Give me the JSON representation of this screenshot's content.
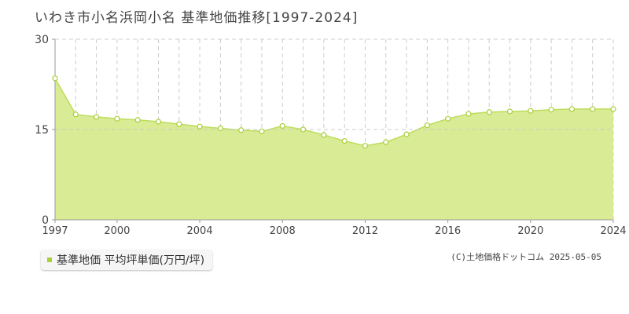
{
  "header": {
    "title": "いわき市小名浜岡小名 基準地価推移[1997-2024]"
  },
  "chart_data": {
    "type": "area",
    "x": [
      1997,
      1998,
      1999,
      2000,
      2001,
      2002,
      2003,
      2004,
      2005,
      2006,
      2007,
      2008,
      2009,
      2010,
      2011,
      2012,
      2013,
      2014,
      2015,
      2016,
      2017,
      2018,
      2019,
      2020,
      2021,
      2022,
      2023,
      2024
    ],
    "series": [
      {
        "name": "基準地価 平均坪単価(万円/坪)",
        "values": [
          23.5,
          17.5,
          17.1,
          16.8,
          16.6,
          16.3,
          15.9,
          15.5,
          15.2,
          14.9,
          14.7,
          15.6,
          15.0,
          14.1,
          13.1,
          12.3,
          12.9,
          14.2,
          15.7,
          16.8,
          17.6,
          17.9,
          18.0,
          18.1,
          18.3,
          18.4,
          18.4,
          18.4
        ]
      }
    ],
    "y_ticks": [
      0,
      15,
      30
    ],
    "y_tick_labels": [
      "0",
      "15",
      "30"
    ],
    "x_tick_labels": [
      "1997",
      "2000",
      "2004",
      "2008",
      "2012",
      "2016",
      "2020",
      "2024"
    ],
    "ylim": [
      0,
      30
    ],
    "grid": true,
    "legend_position": "bottom-left",
    "colors": {
      "fill": "#d9eb94",
      "line": "#bddd5c",
      "point_fill": "#ffffff",
      "point_stroke": "#a9cf3a",
      "grid": "#cccccc",
      "axis": "#999999"
    }
  },
  "footer": {
    "credit": "(C)土地価格ドットコム 2025-05-05"
  }
}
